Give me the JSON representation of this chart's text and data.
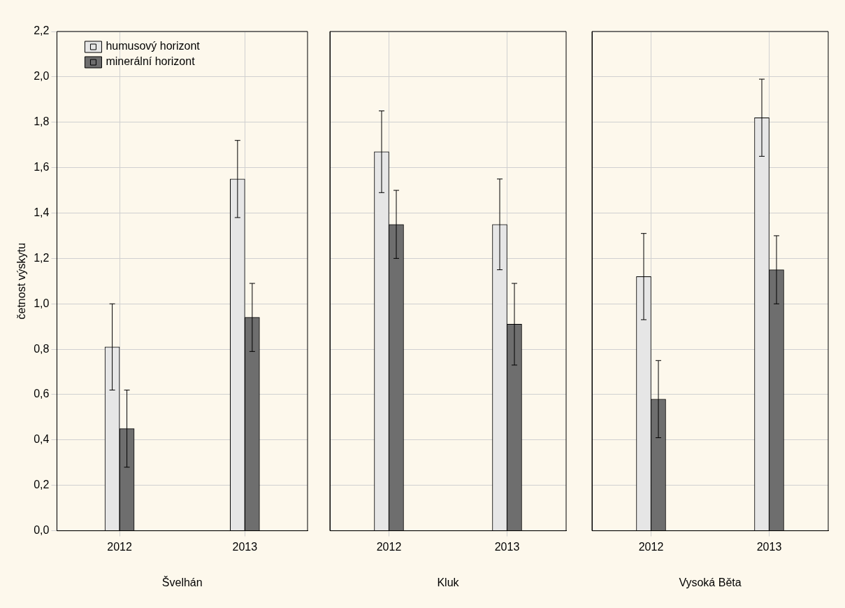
{
  "chart_data": [
    {
      "type": "bar",
      "xlabel": "Švelhán",
      "ylabel": "četnost výskytu",
      "categories": [
        "2012",
        "2013"
      ],
      "series": [
        {
          "name": "humusový horizont",
          "color": "#e6e6e6",
          "values": [
            0.81,
            1.55
          ],
          "errors": [
            0.19,
            0.17
          ]
        },
        {
          "name": "minerální horizont",
          "color": "#6e6e6e",
          "values": [
            0.45,
            0.94
          ],
          "errors": [
            0.17,
            0.15
          ]
        }
      ],
      "ylim": [
        0,
        2.2
      ],
      "yticks": [
        {
          "value": 0,
          "label": "0,0"
        },
        {
          "value": 0.2,
          "label": "0,2"
        },
        {
          "value": 0.4,
          "label": "0,4"
        },
        {
          "value": 0.6,
          "label": "0,6"
        },
        {
          "value": 0.8,
          "label": "0,8"
        },
        {
          "value": 1,
          "label": "1,0"
        },
        {
          "value": 1.2,
          "label": "1,2"
        },
        {
          "value": 1.4,
          "label": "1,4"
        },
        {
          "value": 1.6,
          "label": "1,6"
        },
        {
          "value": 1.8,
          "label": "1,8"
        },
        {
          "value": 2,
          "label": "2,0"
        },
        {
          "value": 2.2,
          "label": "2,2"
        }
      ],
      "grid": true,
      "legend": "top left"
    },
    {
      "type": "bar",
      "xlabel": "Kluk",
      "categories": [
        "2012",
        "2013"
      ],
      "series": [
        {
          "color": "#e6e6e6",
          "values": [
            1.67,
            1.35
          ],
          "errors": [
            0.18,
            0.2
          ]
        },
        {
          "color": "#6e6e6e",
          "values": [
            1.35,
            0.91
          ],
          "errors": [
            0.15,
            0.18
          ]
        }
      ],
      "ylim": [
        0,
        2.2
      ],
      "yticks": [
        0,
        0.2,
        0.4,
        0.6,
        0.8,
        1,
        1.2,
        1.4,
        1.6,
        1.8,
        2,
        2.2
      ],
      "grid": true,
      "tick_labels": "x"
    },
    {
      "type": "bar",
      "xlabel": "Vysoká Běta",
      "categories": [
        "2012",
        "2013"
      ],
      "series": [
        {
          "color": "#e6e6e6",
          "values": [
            1.12,
            1.82
          ],
          "errors": [
            0.19,
            0.17
          ]
        },
        {
          "color": "#6e6e6e",
          "values": [
            0.58,
            1.15
          ],
          "errors": [
            0.17,
            0.15
          ]
        }
      ],
      "ylim": [
        0,
        2.2
      ],
      "yticks": [
        0,
        0.2,
        0.4,
        0.6,
        0.8,
        1,
        1.2,
        1.4,
        1.6,
        1.8,
        2,
        2.2
      ],
      "grid": true,
      "tick_labels": "x"
    }
  ]
}
